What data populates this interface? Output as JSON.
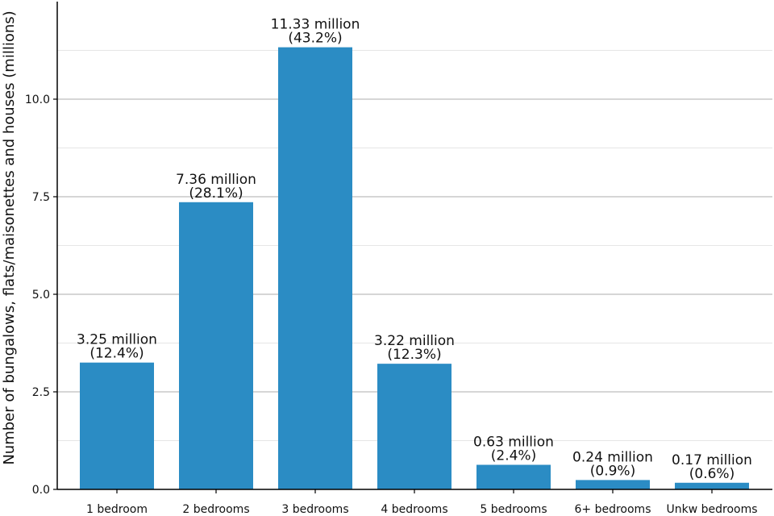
{
  "chart_data": {
    "type": "bar",
    "title": "",
    "xlabel": "",
    "ylabel": "Number of bungalows, flats/maisonettes and houses (millions)",
    "categories": [
      "1 bedroom",
      "2 bedrooms",
      "3 bedrooms",
      "4 bedrooms",
      "5 bedrooms",
      "6+ bedrooms",
      "Unkw bedrooms"
    ],
    "values": [
      3.25,
      7.36,
      11.33,
      3.22,
      0.63,
      0.24,
      0.17
    ],
    "value_labels": [
      "3.25 million",
      "7.36 million",
      "11.33 million",
      "3.22 million",
      "0.63 million",
      "0.24 million",
      "0.17 million"
    ],
    "percent_labels": [
      "(12.4%)",
      "(28.1%)",
      "(43.2%)",
      "(12.3%)",
      "(2.4%)",
      "(0.9%)",
      "(0.6%)"
    ],
    "yticks": [
      0,
      2.5,
      5,
      7.5,
      10
    ],
    "ytick_labels": [
      "0.0",
      "2.5",
      "5.0",
      "7.5",
      "10.0"
    ],
    "ylim": [
      0,
      12.5
    ],
    "grid": true,
    "bar_color": "#2b8cc4",
    "major_grid_color": "#c8c8c8",
    "minor_grid_color": "#e6e6e6"
  }
}
